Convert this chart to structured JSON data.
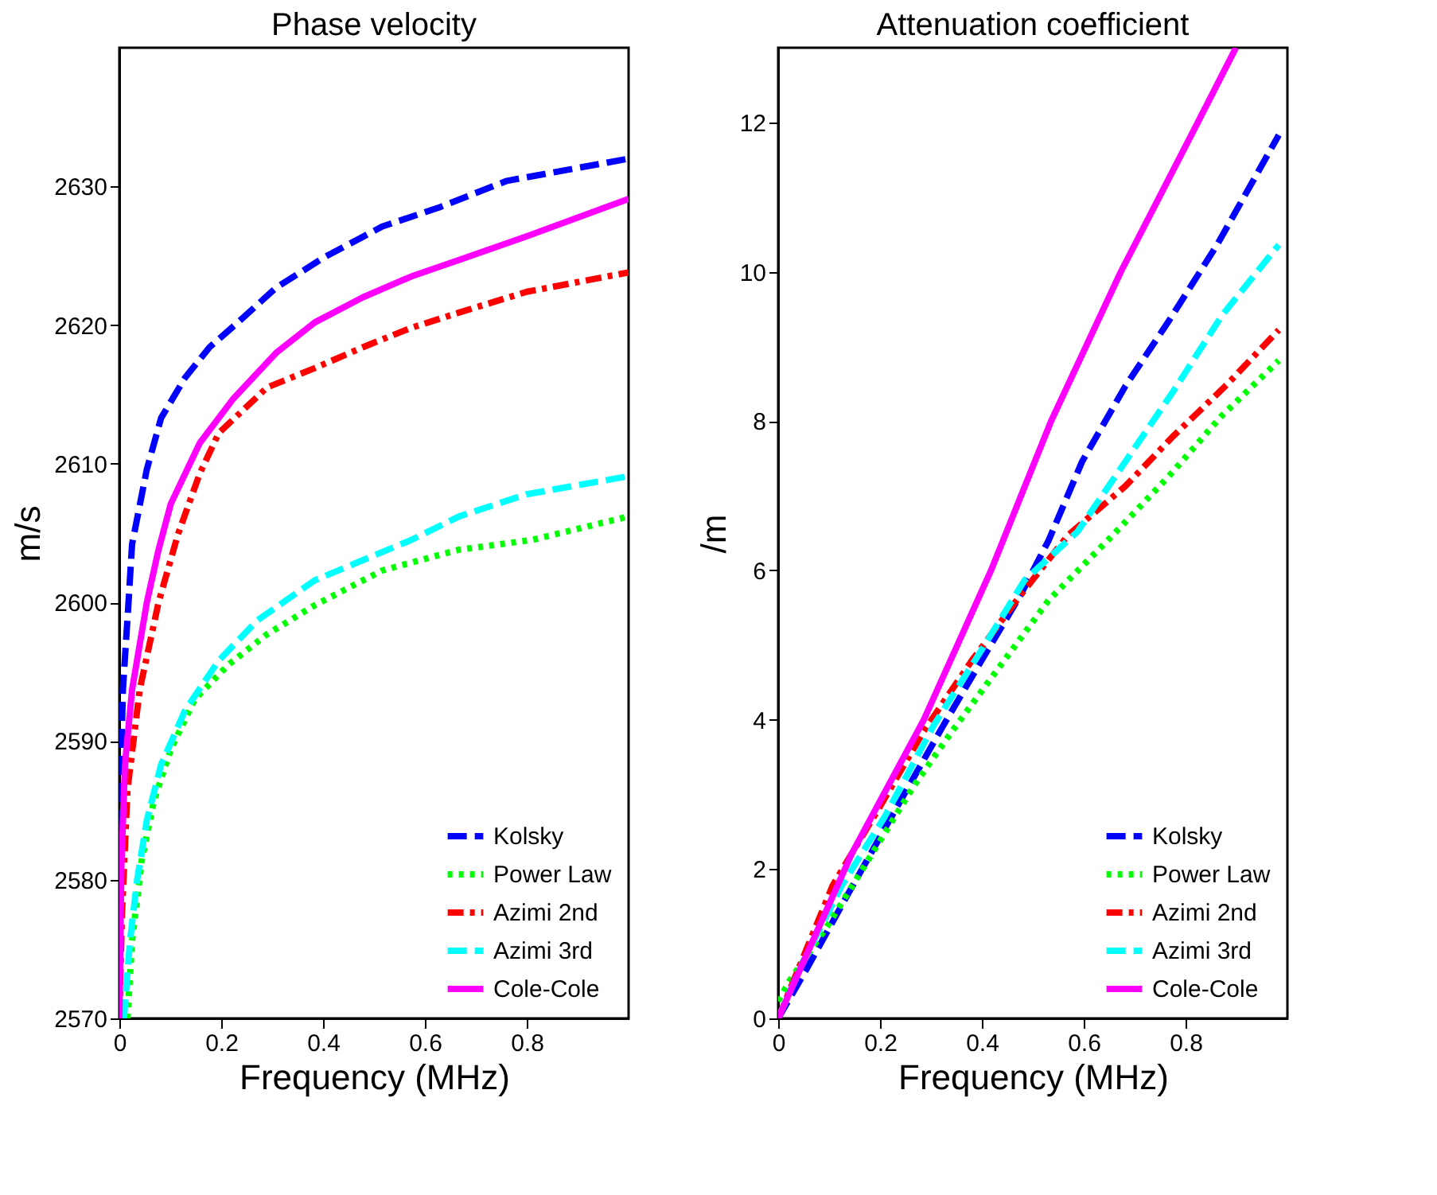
{
  "chart_data": [
    {
      "type": "line",
      "title": "Phase velocity",
      "xlabel": "Frequency (MHz)",
      "ylabel": "m/s",
      "xlim": [
        0,
        1
      ],
      "xticks": [
        0,
        0.2,
        0.4,
        0.6,
        0.8
      ],
      "ylim": [
        2570,
        2640
      ],
      "yticks": [
        2570,
        2580,
        2590,
        2600,
        2610,
        2620,
        2630
      ],
      "grid": false,
      "legend": "bottom right",
      "marker": "none",
      "series": [
        {
          "name": "Kolsky",
          "color": "#0000ff",
          "line_style": "dashed",
          "x": [
            0,
            0.002,
            0.007,
            0.018,
            0.025,
            0.054,
            0.082,
            0.129,
            0.177,
            0.233,
            0.308,
            0.403,
            0.516,
            0.629,
            0.761,
            1
          ],
          "values": [
            2570,
            2586.5,
            2593.7,
            2600,
            2604.2,
            2609.6,
            2613.3,
            2616.2,
            2618.4,
            2620.2,
            2622.7,
            2624.9,
            2627.1,
            2628.5,
            2630.4,
            2632
          ]
        },
        {
          "name": "Power Law",
          "color": "#00ff00",
          "line_style": "dotted",
          "x": [
            0.016,
            0.025,
            0.044,
            0.068,
            0.101,
            0.148,
            0.214,
            0.29,
            0.384,
            0.516,
            0.667,
            0.81,
            1
          ],
          "values": [
            2570,
            2575.6,
            2581.4,
            2585.7,
            2589.4,
            2593,
            2595.5,
            2597.7,
            2599.8,
            2602.3,
            2603.8,
            2604.5,
            2606.2
          ]
        },
        {
          "name": "Azimi 2nd",
          "color": "#ff0000",
          "line_style": "dashdot",
          "x": [
            0,
            0.005,
            0.016,
            0.04,
            0.077,
            0.115,
            0.158,
            0.195,
            0.29,
            0.384,
            0.478,
            0.573,
            0.667,
            0.8,
            1
          ],
          "values": [
            2570,
            2577.4,
            2586.5,
            2593.7,
            2600,
            2604.9,
            2609.3,
            2612.2,
            2615.5,
            2616.9,
            2618.4,
            2619.8,
            2620.9,
            2622.4,
            2623.8
          ]
        },
        {
          "name": "Azimi 3rd",
          "color": "#00ffff",
          "line_style": "dashed",
          "x": [
            0.009,
            0.021,
            0.035,
            0.054,
            0.082,
            0.129,
            0.195,
            0.271,
            0.384,
            0.573,
            0.667,
            0.8,
            1
          ],
          "values": [
            2570,
            2575.6,
            2580,
            2584.3,
            2588.3,
            2592.2,
            2595.8,
            2598.7,
            2601.6,
            2604.5,
            2606.2,
            2607.8,
            2609.1
          ]
        },
        {
          "name": "Cole-Cole",
          "color": "#ff00ff",
          "line_style": "solid",
          "x": [
            0,
            0.004,
            0.011,
            0.025,
            0.054,
            0.077,
            0.101,
            0.158,
            0.224,
            0.308,
            0.384,
            0.478,
            0.573,
            0.667,
            0.8,
            1
          ],
          "values": [
            2570,
            2581,
            2588.3,
            2593.7,
            2600,
            2603.8,
            2607.1,
            2611.5,
            2614.7,
            2618,
            2620.2,
            2622,
            2623.5,
            2624.7,
            2626.4,
            2629.1
          ]
        }
      ]
    },
    {
      "type": "line",
      "title": "Attenuation coefficient",
      "xlabel": "Frequency (MHz)",
      "ylabel": "/m",
      "xlim": [
        0,
        1
      ],
      "xticks": [
        0,
        0.2,
        0.4,
        0.6,
        0.8
      ],
      "ylim": [
        0,
        13
      ],
      "yticks": [
        0,
        2,
        4,
        6,
        8,
        10,
        12
      ],
      "grid": false,
      "legend": "bottom right",
      "marker": "none",
      "series": [
        {
          "name": "Kolsky",
          "color": "#0000ff",
          "line_style": "dashed",
          "x": [
            0,
            0.059,
            0.135,
            0.229,
            0.324,
            0.399,
            0.475,
            0.531,
            0.597,
            0.682,
            0.767,
            0.861,
            0.983
          ],
          "values": [
            0,
            0.7,
            1.64,
            2.78,
            3.92,
            4.79,
            5.66,
            6.4,
            7.46,
            8.47,
            9.34,
            10.35,
            11.83
          ]
        },
        {
          "name": "Power Law",
          "color": "#00ff00",
          "line_style": "dotted",
          "x": [
            0,
            0.022,
            0.097,
            0.182,
            0.267,
            0.342,
            0.437,
            0.531,
            0.654,
            0.767,
            0.871,
            0.983
          ],
          "values": [
            0.23,
            0.5,
            1.24,
            2.18,
            3.12,
            3.85,
            4.73,
            5.6,
            6.45,
            7.26,
            8.07,
            8.81
          ]
        },
        {
          "name": "Azimi 2nd",
          "color": "#ff0000",
          "line_style": "dashdot",
          "x": [
            0,
            0.107,
            0.201,
            0.286,
            0.38,
            0.475,
            0.569,
            0.682,
            0.776,
            0.88,
            0.983
          ],
          "values": [
            0,
            1.78,
            2.85,
            3.85,
            4.79,
            5.66,
            6.47,
            7.13,
            7.8,
            8.48,
            9.22
          ]
        },
        {
          "name": "Azimi 3rd",
          "color": "#00ffff",
          "line_style": "dashed",
          "x": [
            0,
            0.05,
            0.125,
            0.21,
            0.305,
            0.399,
            0.484,
            0.588,
            0.682,
            0.776,
            0.871,
            0.983
          ],
          "values": [
            0,
            0.77,
            1.78,
            2.71,
            3.92,
            4.93,
            5.87,
            6.52,
            7.46,
            8.4,
            9.41,
            10.36
          ]
        },
        {
          "name": "Cole-Cole",
          "color": "#ff00ff",
          "line_style": "solid",
          "x": [
            0,
            0.144,
            0.286,
            0.418,
            0.536,
            0.673,
            0.824,
            0.899
          ],
          "values": [
            0,
            2.2,
            4,
            6,
            8,
            10,
            12,
            13
          ]
        }
      ]
    }
  ]
}
